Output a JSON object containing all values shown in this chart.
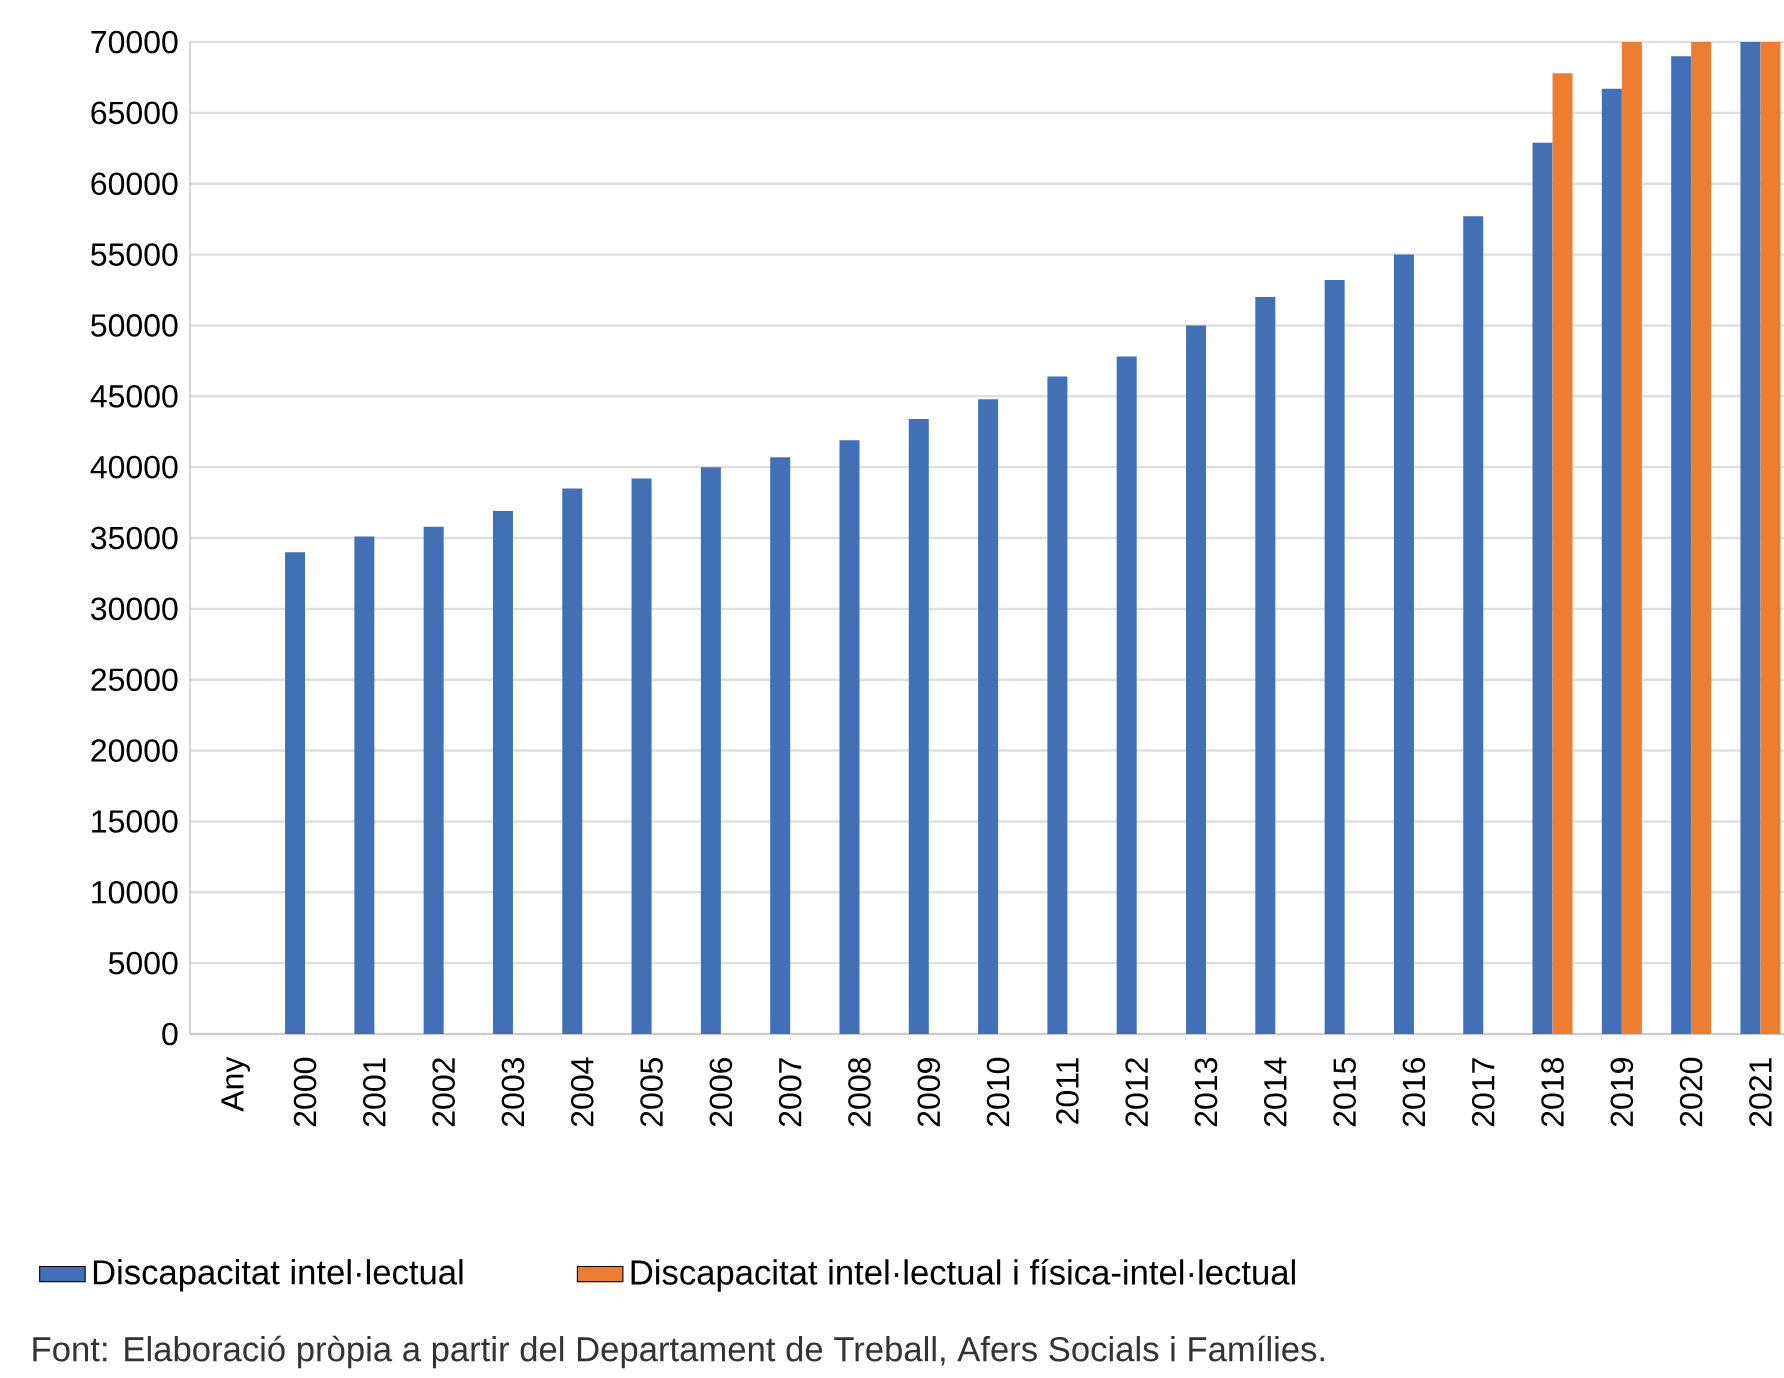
{
  "chart_data": {
    "type": "bar",
    "categories": [
      "Any",
      "2000",
      "2001",
      "2002",
      "2003",
      "2004",
      "2005",
      "2006",
      "2007",
      "2008",
      "2009",
      "2010",
      "2011",
      "2012",
      "2013",
      "2014",
      "2015",
      "2016",
      "2017",
      "2018",
      "2019",
      "2020",
      "2021"
    ],
    "series": [
      {
        "name": "Discapacitat intel·lectual",
        "color": "#4270b7",
        "values": [
          null,
          34000,
          35100,
          35800,
          36900,
          38500,
          39200,
          40000,
          40700,
          41900,
          43400,
          44800,
          46400,
          47800,
          50000,
          52000,
          53200,
          55000,
          57700,
          62900,
          66700,
          69000,
          70000
        ]
      },
      {
        "name": "Discapacitat intel·lectual i física-intel·lectual",
        "color": "#ed7d31",
        "values": [
          null,
          null,
          null,
          null,
          null,
          null,
          null,
          null,
          null,
          null,
          null,
          null,
          null,
          null,
          null,
          null,
          null,
          null,
          null,
          67800,
          70000,
          70000,
          70000
        ]
      }
    ],
    "ylim": [
      0,
      70000
    ],
    "yticks": [
      0,
      5000,
      10000,
      15000,
      20000,
      25000,
      30000,
      35000,
      40000,
      45000,
      50000,
      55000,
      60000,
      65000,
      70000
    ],
    "grid": "y",
    "legend": "bottom",
    "annotations": [
      "Font: Elaboració pròpia a partir del Departament de Treball, Afers Socials i Famílies."
    ]
  }
}
